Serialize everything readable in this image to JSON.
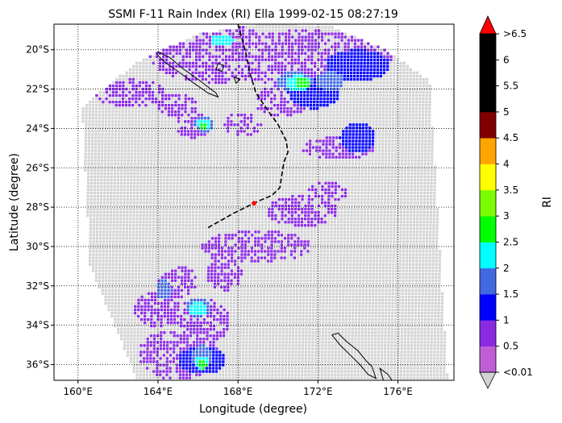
{
  "chart_data": {
    "type": "heatmap",
    "title": "SSMI F-11 Rain Index (RI) Ella 1999-02-15 08:27:19",
    "xlabel": "Longitude (degree)",
    "ylabel": "Latitude (degree)",
    "xlim": [
      158.8,
      178.8
    ],
    "ylim": [
      -36.8,
      -18.7
    ],
    "x_ticks": [
      {
        "value": 160,
        "label": "160°E"
      },
      {
        "value": 164,
        "label": "164°E"
      },
      {
        "value": 168,
        "label": "168°E"
      },
      {
        "value": 172,
        "label": "172°E"
      },
      {
        "value": 176,
        "label": "176°E"
      }
    ],
    "y_ticks": [
      {
        "value": -20,
        "label": "20°S"
      },
      {
        "value": -22,
        "label": "22°S"
      },
      {
        "value": -24,
        "label": "24°S"
      },
      {
        "value": -26,
        "label": "26°S"
      },
      {
        "value": -28,
        "label": "28°S"
      },
      {
        "value": -30,
        "label": "30°S"
      },
      {
        "value": -32,
        "label": "32°S"
      },
      {
        "value": -34,
        "label": "34°S"
      },
      {
        "value": -36,
        "label": "36°S"
      }
    ],
    "grid": true,
    "grid_style": "dotted",
    "no_rain_color": "#d3d3d3",
    "colorbar": {
      "label": "RI",
      "levels": [
        0.01,
        0.5,
        1,
        1.5,
        2,
        2.5,
        3,
        3.5,
        4,
        4.5,
        5,
        5.5,
        6,
        6.5
      ],
      "tick_labels": [
        "<0.01",
        "0.5",
        "1",
        "1.5",
        "2",
        "2.5",
        "3",
        "3.5",
        "4",
        "4.5",
        "5",
        "5.5",
        "6",
        ">6.5"
      ],
      "colors": [
        "#bf5fd6",
        "#8a2be2",
        "#0000ff",
        "#4169e1",
        "#00ffff",
        "#00ff00",
        "#7cfc00",
        "#ffff00",
        "#ffa500",
        "#800000",
        "#000000",
        "#000000",
        "#000000"
      ],
      "under_color": "#d3d3d3",
      "over_color": "#ff0000"
    },
    "storm_center": {
      "lon": 168.8,
      "lat": -27.8,
      "color": "#ff0000"
    },
    "track": [
      [
        168.0,
        -18.7
      ],
      [
        168.4,
        -20.2
      ],
      [
        168.6,
        -21.2
      ],
      [
        168.9,
        -22.2
      ],
      [
        169.5,
        -23.1
      ],
      [
        170.0,
        -23.8
      ],
      [
        170.4,
        -24.6
      ],
      [
        170.5,
        -25.2
      ],
      [
        170.3,
        -25.7
      ],
      [
        170.2,
        -26.3
      ],
      [
        170.1,
        -27.0
      ],
      [
        169.7,
        -27.4
      ],
      [
        169.0,
        -27.7
      ],
      [
        168.6,
        -27.9
      ],
      [
        167.8,
        -28.3
      ],
      [
        166.4,
        -29.1
      ]
    ],
    "rain_regions": [
      {
        "lon": 166.8,
        "lat": -20.2,
        "rx": 3.3,
        "ry": 1.5,
        "ri": 0.5
      },
      {
        "lon": 171.2,
        "lat": -20.4,
        "rx": 4.5,
        "ry": 1.4,
        "ri": 0.5
      },
      {
        "lon": 174.0,
        "lat": -20.8,
        "rx": 1.6,
        "ry": 0.8,
        "ri": 1.0
      },
      {
        "lon": 171.8,
        "lat": -22.2,
        "rx": 1.3,
        "ry": 0.8,
        "ri": 1.0
      },
      {
        "lon": 170.2,
        "lat": -22.6,
        "rx": 1.4,
        "ry": 0.8,
        "ri": 0.5
      },
      {
        "lon": 162.6,
        "lat": -22.2,
        "rx": 1.8,
        "ry": 0.7,
        "ri": 0.5
      },
      {
        "lon": 165.0,
        "lat": -22.8,
        "rx": 1.0,
        "ry": 0.6,
        "ri": 0.5
      },
      {
        "lon": 165.8,
        "lat": -23.8,
        "rx": 0.9,
        "ry": 0.7,
        "ri": 0.5
      },
      {
        "lon": 168.2,
        "lat": -23.8,
        "rx": 1.0,
        "ry": 0.6,
        "ri": 0.5
      },
      {
        "lon": 173.0,
        "lat": -25.0,
        "rx": 1.8,
        "ry": 0.6,
        "ri": 0.5
      },
      {
        "lon": 174.0,
        "lat": -24.5,
        "rx": 0.9,
        "ry": 0.8,
        "ri": 1.0
      },
      {
        "lon": 172.5,
        "lat": -27.2,
        "rx": 1.0,
        "ry": 0.5,
        "ri": 0.5
      },
      {
        "lon": 171.2,
        "lat": -28.2,
        "rx": 1.8,
        "ry": 0.8,
        "ri": 0.5
      },
      {
        "lon": 169.0,
        "lat": -30.0,
        "rx": 2.8,
        "ry": 0.8,
        "ri": 0.5
      },
      {
        "lon": 167.3,
        "lat": -31.3,
        "rx": 0.9,
        "ry": 1.0,
        "ri": 0.5
      },
      {
        "lon": 165.0,
        "lat": -31.8,
        "rx": 1.0,
        "ry": 0.8,
        "ri": 0.5
      },
      {
        "lon": 164.0,
        "lat": -33.2,
        "rx": 1.2,
        "ry": 0.9,
        "ri": 0.5
      },
      {
        "lon": 166.2,
        "lat": -33.8,
        "rx": 1.4,
        "ry": 1.2,
        "ri": 0.5
      },
      {
        "lon": 165.0,
        "lat": -35.5,
        "rx": 2.0,
        "ry": 1.3,
        "ri": 0.5
      },
      {
        "lon": 166.2,
        "lat": -35.8,
        "rx": 1.2,
        "ry": 0.7,
        "ri": 1.0
      },
      {
        "lon": 166.3,
        "lat": -23.8,
        "rx": 0.5,
        "ry": 0.4,
        "ri": 1.5
      },
      {
        "lon": 170.8,
        "lat": -21.6,
        "rx": 0.9,
        "ry": 0.5,
        "ri": 1.5
      },
      {
        "lon": 172.6,
        "lat": -21.6,
        "rx": 0.7,
        "ry": 0.5,
        "ri": 1.5
      },
      {
        "lon": 164.3,
        "lat": -32.2,
        "rx": 0.4,
        "ry": 0.5,
        "ri": 1.5
      },
      {
        "lon": 166.0,
        "lat": -33.1,
        "rx": 0.6,
        "ry": 0.5,
        "ri": 1.5
      },
      {
        "lon": 166.2,
        "lat": -35.6,
        "rx": 0.5,
        "ry": 0.6,
        "ri": 1.5
      },
      {
        "lon": 171.0,
        "lat": -21.7,
        "rx": 0.6,
        "ry": 0.4,
        "ri": 2.0
      },
      {
        "lon": 166.3,
        "lat": -23.8,
        "rx": 0.35,
        "ry": 0.3,
        "ri": 2.0
      },
      {
        "lon": 166.0,
        "lat": -33.2,
        "rx": 0.4,
        "ry": 0.35,
        "ri": 2.0
      },
      {
        "lon": 167.2,
        "lat": -19.5,
        "rx": 0.6,
        "ry": 0.3,
        "ri": 2.0
      },
      {
        "lon": 166.2,
        "lat": -35.9,
        "rx": 0.4,
        "ry": 0.35,
        "ri": 2.0
      },
      {
        "lon": 171.2,
        "lat": -21.7,
        "rx": 0.35,
        "ry": 0.3,
        "ri": 2.5
      },
      {
        "lon": 166.3,
        "lat": -23.85,
        "rx": 0.2,
        "ry": 0.2,
        "ri": 2.5
      },
      {
        "lon": 166.2,
        "lat": -36.0,
        "rx": 0.25,
        "ry": 0.2,
        "ri": 2.5
      }
    ]
  }
}
